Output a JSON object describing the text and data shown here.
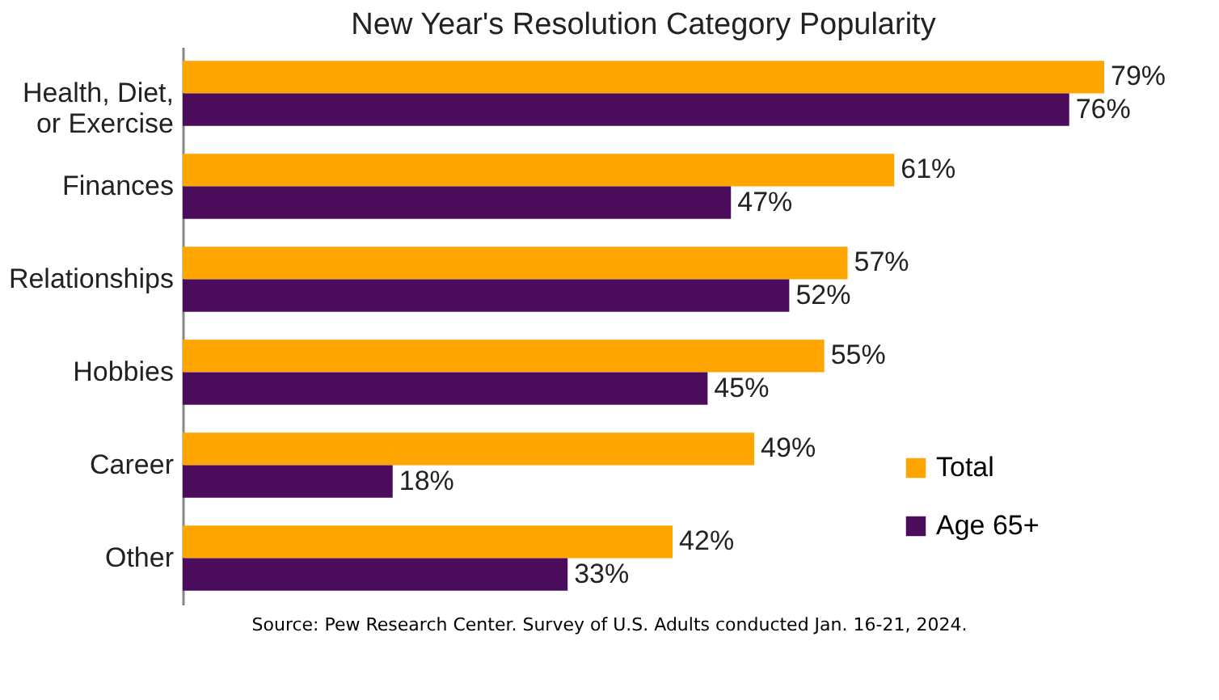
{
  "chart_data": {
    "type": "bar",
    "orientation": "horizontal",
    "title": "New Year's Resolution Category Popularity",
    "categories": [
      "Health, Diet, or Exercise",
      "Finances",
      "Relationships",
      "Hobbies",
      "Career",
      "Other"
    ],
    "series": [
      {
        "name": "Total",
        "color": "#ffa500",
        "values": [
          79,
          61,
          57,
          55,
          49,
          42
        ],
        "value_labels": [
          "79%",
          "61%",
          "57%",
          "55%",
          "49%",
          "42%"
        ]
      },
      {
        "name": "Age 65+",
        "color": "#4b0c5c",
        "values": [
          76,
          47,
          52,
          45,
          18,
          33
        ],
        "value_labels": [
          "76%",
          "47%",
          "52%",
          "45%",
          "18%",
          "33%"
        ]
      }
    ],
    "legend": "bottom right",
    "tick_labels": "y",
    "annotations": [
      "Source: Pew Research Center. Survey of U.S. Adults conducted Jan. 16-21, 2024."
    ]
  }
}
